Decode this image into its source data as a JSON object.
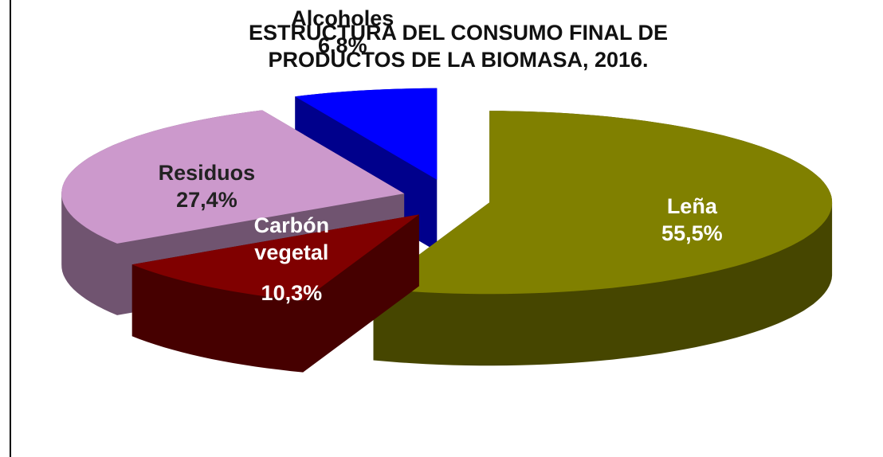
{
  "chart_data": {
    "type": "pie3d",
    "title": [
      "ESTRUCTURA DEL CONSUMO FINAL DE",
      "PRODUCTOS DE LA BIOMASA, 2016."
    ],
    "categories": [
      "Leña",
      "Carbón vegetal",
      "Residuos",
      "Alcoholes"
    ],
    "values": [
      55.5,
      10.3,
      27.4,
      6.8
    ],
    "value_labels": [
      "55,5%",
      "10,3%",
      "27,4%",
      "6,8%"
    ],
    "colors": [
      "#808000",
      "#800000",
      "#cc99cc",
      "#0000ff"
    ]
  }
}
